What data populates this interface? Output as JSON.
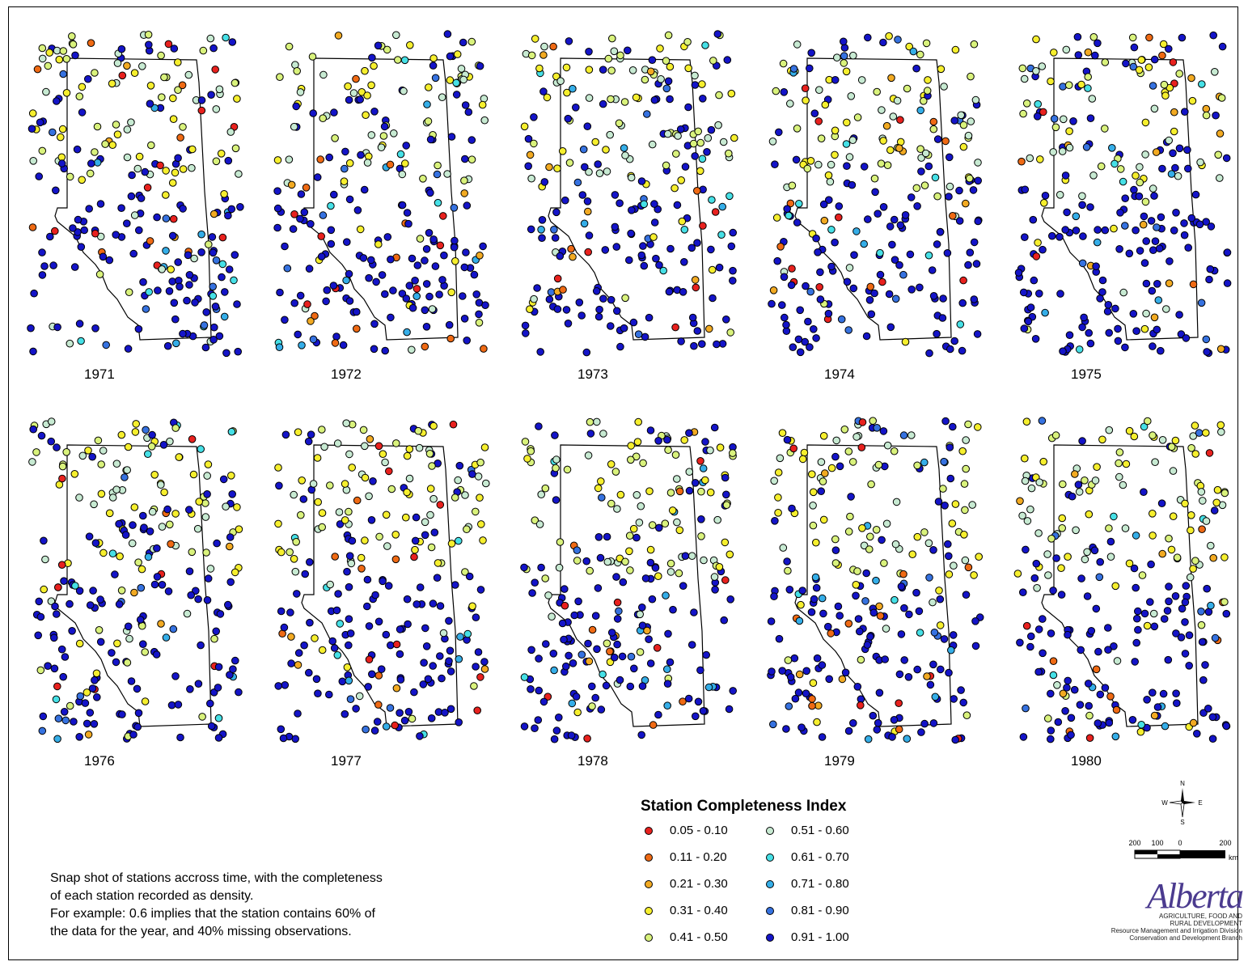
{
  "years": [
    "1971",
    "1972",
    "1973",
    "1974",
    "1975",
    "1976",
    "1977",
    "1978",
    "1979",
    "1980"
  ],
  "legend": {
    "title": "Station Completeness Index",
    "classes": [
      {
        "label": "0.05 - 0.10",
        "color": "#e8211e"
      },
      {
        "label": "0.11 - 0.20",
        "color": "#ef6a14"
      },
      {
        "label": "0.21 - 0.30",
        "color": "#f2aa22"
      },
      {
        "label": "0.31 - 0.40",
        "color": "#f6ef2e"
      },
      {
        "label": "0.41 - 0.50",
        "color": "#d9f27c"
      },
      {
        "label": "0.51 - 0.60",
        "color": "#c7ead2"
      },
      {
        "label": "0.61 - 0.70",
        "color": "#46e0e6"
      },
      {
        "label": "0.71 - 0.80",
        "color": "#35aee8"
      },
      {
        "label": "0.81 - 0.90",
        "color": "#3672e0"
      },
      {
        "label": "0.91 - 1.00",
        "color": "#1414c8"
      }
    ]
  },
  "note": {
    "lines": [
      "Snap shot of stations accross time, with the completeness",
      "of each station recorded as density.",
      "For example: 0.6 implies that the station contains 60% of",
      "the data for the year, and 40% missing observations."
    ]
  },
  "compass": {
    "n": "N",
    "s": "S",
    "e": "E",
    "w": "W"
  },
  "scale": {
    "labels": [
      "200",
      "100",
      "0",
      "200"
    ],
    "unit": "km"
  },
  "logo": {
    "word": "Alberta",
    "lines": [
      "AGRICULTURE, FOOD AND",
      "RURAL DEVELOPMENT",
      "Resource Management and Irrigation Division",
      "Conservation and Development Branch"
    ]
  }
}
